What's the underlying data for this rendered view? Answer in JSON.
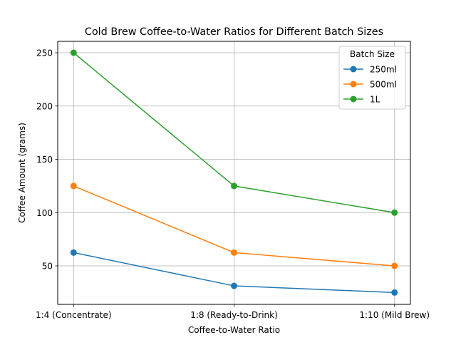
{
  "chart_data": {
    "type": "line",
    "title": "Cold Brew Coffee-to-Water Ratios for Different Batch Sizes",
    "xlabel": "Coffee-to-Water Ratio",
    "ylabel": "Coffee Amount (grams)",
    "categories": [
      "1:4 (Concentrate)",
      "1:8 (Ready-to-Drink)",
      "1:10 (Mild Brew)"
    ],
    "yticks": [
      50,
      100,
      150,
      200,
      250
    ],
    "ylim": [
      13.9,
      260.7
    ],
    "grid": true,
    "legend": {
      "title": "Batch Size",
      "placement": "top-right"
    },
    "series": [
      {
        "name": "250ml",
        "color": "#1f77b4",
        "values": [
          62.5,
          31.25,
          25
        ]
      },
      {
        "name": "500ml",
        "color": "#ff7f0e",
        "values": [
          125,
          62.5,
          50
        ]
      },
      {
        "name": "1L",
        "color": "#2ca02c",
        "values": [
          250,
          125,
          100
        ]
      }
    ]
  }
}
